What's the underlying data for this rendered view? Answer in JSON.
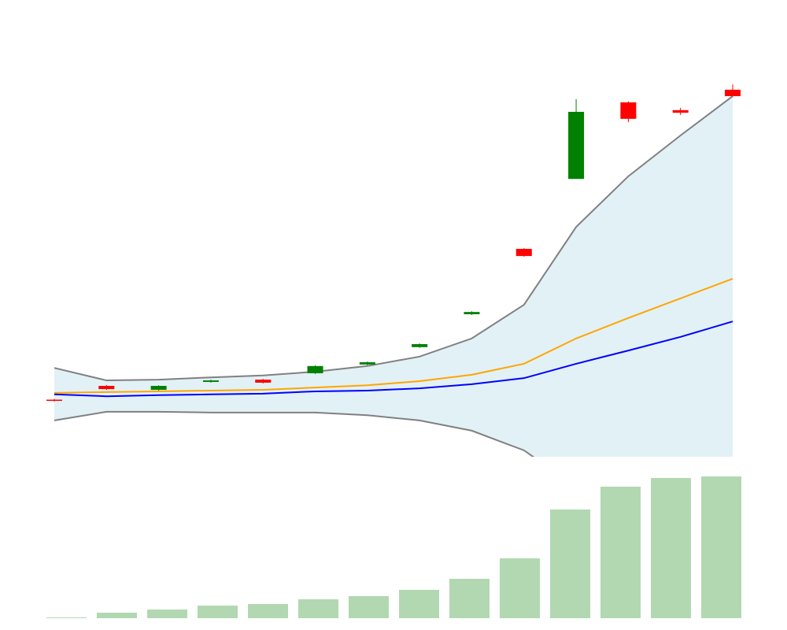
{
  "chart_data": [
    {
      "type": "candlestick",
      "categories": [
        null,
        null,
        null,
        null,
        null,
        null,
        null,
        null,
        null,
        null,
        null,
        null,
        null,
        null
      ],
      "open": [
        15.1,
        18.75,
        17.7,
        19.8,
        20.4,
        22.1,
        24.4,
        29.0,
        37.7,
        55.0,
        73.5,
        93.75,
        91.7,
        97.1
      ],
      "high": [
        15.3,
        19.0,
        18.9,
        20.4,
        20.6,
        24.2,
        25.2,
        30.0,
        38.5,
        55.2,
        94.6,
        94.0,
        92.3,
        98.5
      ],
      "low": [
        14.6,
        17.7,
        17.5,
        19.6,
        19.4,
        21.9,
        24.2,
        28.8,
        37.5,
        52.9,
        73.5,
        88.5,
        90.4,
        95.2
      ],
      "close": [
        14.9,
        17.9,
        18.75,
        20.2,
        19.6,
        24.0,
        25.0,
        29.8,
        38.3,
        53.1,
        91.25,
        89.4,
        91.0,
        95.4
      ],
      "up_color": "#008000",
      "down_color": "#ff0000",
      "band": {
        "upper": [
          23.5,
          20.2,
          20.4,
          21.0,
          21.5,
          22.5,
          24.0,
          26.5,
          31.3,
          40.2,
          60.8,
          74.2,
          85.0,
          95.4
        ],
        "lower": [
          9.6,
          11.9,
          11.9,
          11.7,
          11.7,
          11.7,
          11.0,
          9.6,
          6.9,
          1.7,
          -8,
          -12,
          -16,
          -20
        ],
        "color": "#808080",
        "fill": "#add8e6"
      },
      "series": [
        {
          "color": "#ffa500",
          "values": [
            16.9,
            17.1,
            17.3,
            17.5,
            17.7,
            18.3,
            18.9,
            20.0,
            21.7,
            24.6,
            31.3,
            36.7,
            41.9,
            47.1
          ]
        },
        {
          "color": "#0000ff",
          "values": [
            16.5,
            16.0,
            16.3,
            16.5,
            16.7,
            17.3,
            17.5,
            18.1,
            19.2,
            20.8,
            24.6,
            28.1,
            31.7,
            35.8
          ]
        }
      ],
      "ylim": [
        0,
        100
      ]
    },
    {
      "type": "bar",
      "categories": [
        null,
        null,
        null,
        null,
        null,
        null,
        null,
        null,
        null,
        null,
        null,
        null,
        null,
        null
      ],
      "values": [
        1,
        7,
        11,
        16,
        18,
        24,
        28,
        36,
        50,
        76,
        138,
        167,
        178,
        180
      ],
      "color": "#b2d8b2",
      "ylim": [
        0,
        180
      ]
    }
  ]
}
